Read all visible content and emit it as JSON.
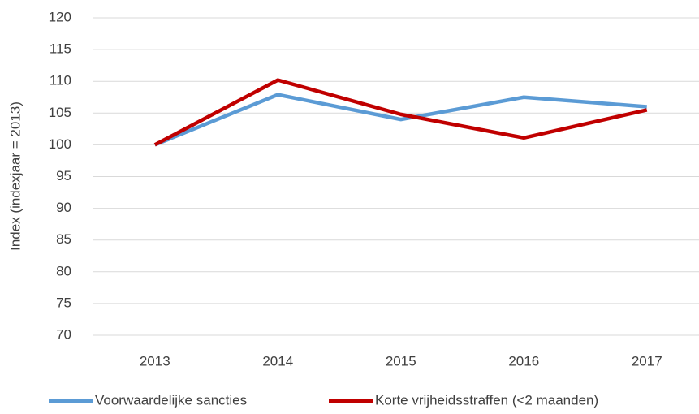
{
  "chart_data": {
    "type": "line",
    "y_label": "Index (indexjaar = 2013)",
    "categories": [
      "2013",
      "2014",
      "2015",
      "2016",
      "2017"
    ],
    "series": [
      {
        "name": "Voorwaardelijke sancties",
        "color": "#5b9bd5",
        "values": [
          100,
          107.9,
          104,
          107.5,
          106
        ]
      },
      {
        "name": "Korte vrijheidsstraffen (<2 maanden)",
        "color": "#c00000",
        "values": [
          100,
          110.2,
          104.8,
          101.1,
          105.5
        ]
      }
    ],
    "ylim": [
      70,
      120
    ],
    "yticks": [
      70,
      75,
      80,
      85,
      90,
      95,
      100,
      105,
      110,
      115,
      120
    ],
    "grid": true,
    "legend": "bottom"
  }
}
